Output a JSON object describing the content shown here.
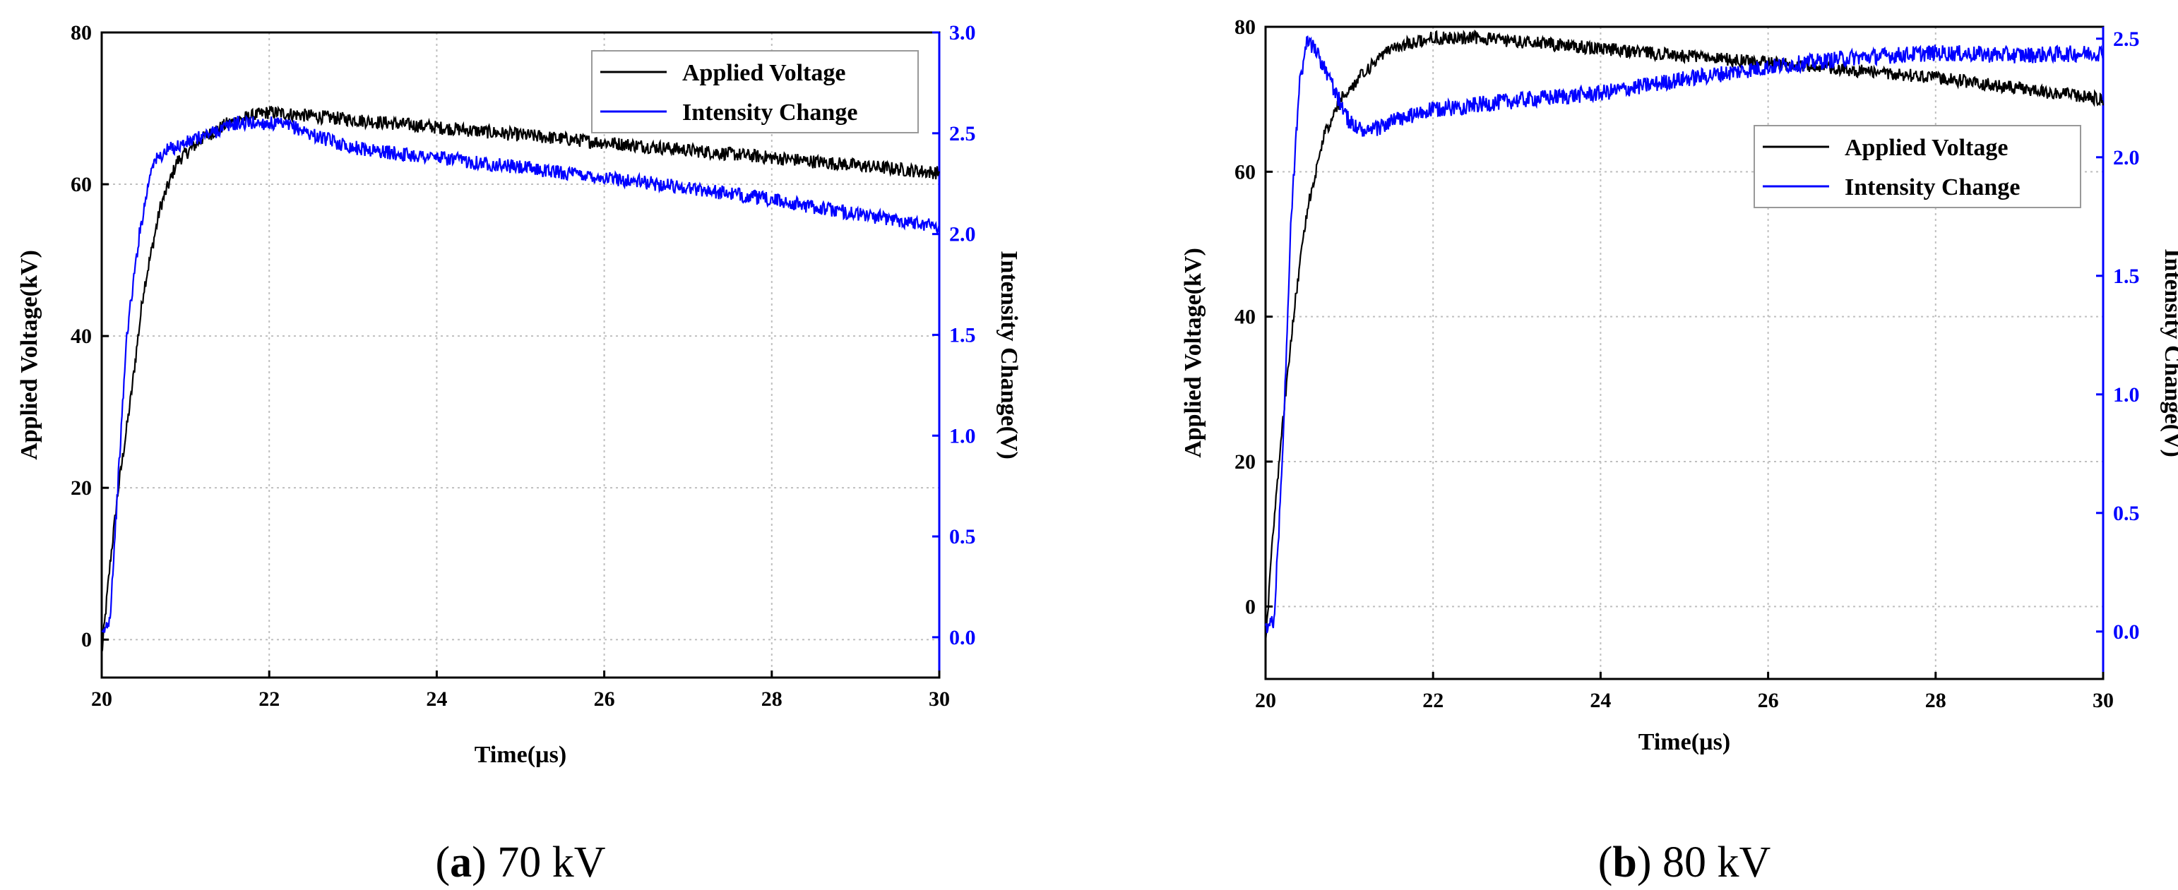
{
  "chart_data": [
    {
      "type": "line",
      "caption_letter": "a",
      "caption_text": "70 kV",
      "xlabel": "Time(µs)",
      "ylabel": "Applied Voltage(kV)",
      "y2label": "Intensity Change(V)",
      "xlim": [
        20,
        30
      ],
      "ylim": [
        -5,
        80
      ],
      "y2lim": [
        -0.2,
        3.0
      ],
      "xticks": [
        "20",
        "22",
        "24",
        "26",
        "28",
        "30"
      ],
      "yticks": [
        "0",
        "20",
        "40",
        "60",
        "80"
      ],
      "y2ticks": [
        "0.0",
        "0.5",
        "1.0",
        "1.5",
        "2.0",
        "2.5",
        "3.0"
      ],
      "legend": [
        "Applied Voltage",
        "Intensity Change"
      ],
      "series": [
        {
          "name": "Applied Voltage",
          "axis": "left",
          "color": "#000000",
          "x": [
            20.0,
            20.1,
            20.2,
            20.35,
            20.5,
            20.7,
            20.9,
            21.2,
            21.5,
            21.8,
            22.0,
            22.5,
            23.0,
            24.0,
            25.0,
            26.0,
            27.0,
            28.0,
            29.0,
            30.0
          ],
          "y": [
            -2,
            10,
            20,
            32,
            46,
            57,
            63,
            66,
            68,
            69,
            69.5,
            69,
            68.5,
            67.5,
            66.5,
            65.5,
            64.5,
            63.5,
            62.5,
            61.5
          ]
        },
        {
          "name": "Intensity Change",
          "axis": "right",
          "color": "#0000ff",
          "x": [
            20.0,
            20.1,
            20.2,
            20.3,
            20.45,
            20.6,
            20.8,
            21.0,
            21.3,
            21.6,
            22.0,
            22.3,
            22.6,
            23.0,
            23.5,
            24.0,
            25.0,
            26.0,
            27.0,
            28.0,
            29.0,
            30.0
          ],
          "y": [
            0.0,
            0.1,
            0.8,
            1.5,
            2.0,
            2.35,
            2.42,
            2.45,
            2.5,
            2.55,
            2.55,
            2.53,
            2.48,
            2.43,
            2.4,
            2.38,
            2.33,
            2.28,
            2.23,
            2.17,
            2.1,
            2.04
          ]
        }
      ]
    },
    {
      "type": "line",
      "caption_letter": "b",
      "caption_text": "80 kV",
      "xlabel": "Time(µs)",
      "ylabel": "Applied Voltage(kV)",
      "y2label": "Intensity Change(V)",
      "xlim": [
        20,
        30
      ],
      "ylim": [
        -10,
        80
      ],
      "y2lim": [
        -0.2,
        2.55
      ],
      "xticks": [
        "20",
        "22",
        "24",
        "26",
        "28",
        "30"
      ],
      "yticks": [
        "0",
        "20",
        "40",
        "60",
        "80"
      ],
      "y2ticks": [
        "0.0",
        "0.5",
        "1.0",
        "1.5",
        "2.0",
        "2.5"
      ],
      "legend": [
        "Applied Voltage",
        "Intensity Change"
      ],
      "series": [
        {
          "name": "Applied Voltage",
          "axis": "left",
          "color": "#000000",
          "x": [
            20.0,
            20.1,
            20.2,
            20.35,
            20.5,
            20.7,
            20.9,
            21.2,
            21.5,
            21.8,
            22.0,
            22.5,
            23.0,
            24.0,
            25.0,
            26.0,
            27.0,
            28.0,
            29.0,
            30.0
          ],
          "y": [
            -5,
            12,
            25,
            42,
            55,
            65,
            70,
            74,
            77,
            78,
            78.5,
            78.5,
            78,
            77,
            76,
            75,
            74,
            73,
            71.5,
            70
          ]
        },
        {
          "name": "Intensity Change",
          "axis": "right",
          "color": "#0000ff",
          "x": [
            20.0,
            20.1,
            20.2,
            20.3,
            20.4,
            20.5,
            20.6,
            20.8,
            21.0,
            21.2,
            21.5,
            22.0,
            23.0,
            24.0,
            25.0,
            26.0,
            27.0,
            28.0,
            29.0,
            30.0
          ],
          "y": [
            0.0,
            0.05,
            0.7,
            1.7,
            2.3,
            2.5,
            2.45,
            2.3,
            2.15,
            2.1,
            2.15,
            2.2,
            2.24,
            2.27,
            2.33,
            2.38,
            2.42,
            2.44,
            2.43,
            2.44
          ]
        }
      ]
    }
  ]
}
